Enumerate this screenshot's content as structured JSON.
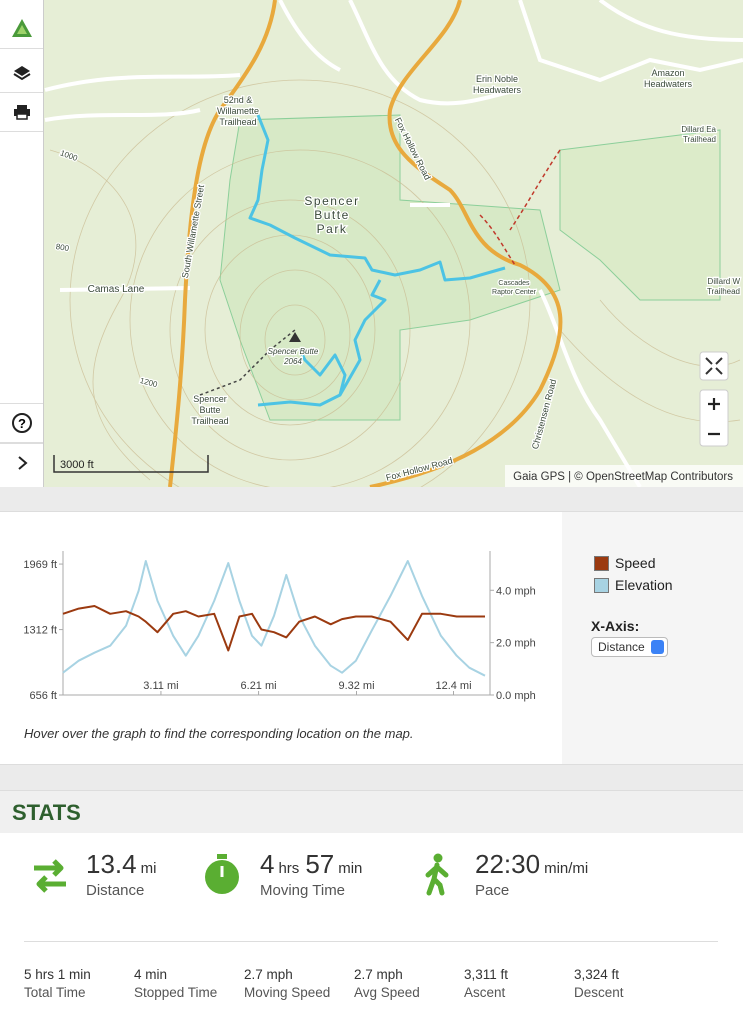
{
  "map": {
    "labels": [
      {
        "lines": [
          "52nd &",
          "Willamette",
          "Trailhead"
        ]
      },
      {
        "lines": [
          "Spencer",
          "Butte",
          "Park"
        ]
      },
      {
        "lines": [
          "Fox Hollow Road"
        ]
      },
      {
        "lines": [
          "South Willamette Street"
        ]
      },
      {
        "lines": [
          "Camas Lane"
        ]
      },
      {
        "lines": [
          "Spencer Butte",
          "2064"
        ]
      },
      {
        "lines": [
          "Spencer",
          "Butte",
          "Trailhead"
        ]
      },
      {
        "lines": [
          "Erin Noble",
          "Headwaters"
        ]
      },
      {
        "lines": [
          "Amazon",
          "Headwaters"
        ]
      },
      {
        "lines": [
          "Dillard Ea",
          "Trailhead"
        ]
      },
      {
        "lines": [
          "Cascades",
          "Raptor Center"
        ]
      },
      {
        "lines": [
          "Dillard W",
          "Trailhead"
        ]
      },
      {
        "lines": [
          "Christensen Road"
        ]
      },
      {
        "lines": [
          "Fox Hollow Road"
        ]
      },
      {
        "lines": [
          "1000"
        ]
      },
      {
        "lines": [
          "800"
        ]
      },
      {
        "lines": [
          "1200"
        ]
      }
    ],
    "scale": "3000 ft",
    "attribution": "Gaia GPS | © OpenStreetMap Contributors"
  },
  "chart_data": {
    "type": "line",
    "x": [
      0,
      0.5,
      1.0,
      1.5,
      2.0,
      2.4,
      2.63,
      3.0,
      3.5,
      3.9,
      4.3,
      4.8,
      5.25,
      5.6,
      6.0,
      6.3,
      6.7,
      7.09,
      7.5,
      8.0,
      8.5,
      8.86,
      9.3,
      9.8,
      10.4,
      10.95,
      11.4,
      12.0,
      12.5,
      12.9,
      13.4
    ],
    "series": [
      {
        "name": "Speed",
        "color": "#9b3a10",
        "axis": "y2",
        "values": [
          3.1,
          3.3,
          3.4,
          3.1,
          3.2,
          3.0,
          2.8,
          2.4,
          3.1,
          3.2,
          3.0,
          3.1,
          1.7,
          3.0,
          3.1,
          2.5,
          2.4,
          2.2,
          2.8,
          3.0,
          2.7,
          2.9,
          3.0,
          3.0,
          2.8,
          2.1,
          3.1,
          3.1,
          3.0,
          3.0,
          3.0
        ]
      },
      {
        "name": "Elevation",
        "color": "#a8d3e3",
        "values": [
          880,
          1000,
          1080,
          1150,
          1350,
          1700,
          2000,
          1600,
          1250,
          1050,
          1250,
          1600,
          1980,
          1600,
          1250,
          1150,
          1450,
          1860,
          1450,
          1150,
          950,
          880,
          1000,
          1300,
          1650,
          2000,
          1650,
          1250,
          1050,
          930,
          850
        ]
      }
    ],
    "xlim": [
      0,
      13.4
    ],
    "xticks": [
      {
        "value": 3.11,
        "label": "3.11 mi"
      },
      {
        "value": 6.21,
        "label": "6.21 mi"
      },
      {
        "value": 9.32,
        "label": "9.32 mi"
      },
      {
        "value": 12.4,
        "label": "12.4 mi"
      }
    ],
    "ylim": [
      656,
      2100
    ],
    "yticks": [
      {
        "value": 656,
        "label": "656 ft"
      },
      {
        "value": 1312,
        "label": "1312 ft"
      },
      {
        "value": 1969,
        "label": "1969 ft"
      }
    ],
    "y2lim": [
      0,
      5.5
    ],
    "y2ticks": [
      {
        "value": 0,
        "label": "0.0 mph"
      },
      {
        "value": 2,
        "label": "2.0 mph"
      },
      {
        "value": 4,
        "label": "4.0 mph"
      }
    ],
    "note": "Hover over the graph to find the corresponding location on the map.",
    "xaxis_label": "X-Axis:",
    "xaxis_option": "Distance"
  },
  "stats": {
    "title": "STATS",
    "primary": [
      {
        "parts": [
          "13.4",
          "mi"
        ],
        "label": "Distance"
      },
      {
        "parts": [
          "4",
          "hrs",
          "57",
          "min"
        ],
        "label": "Moving Time"
      },
      {
        "parts": [
          "22:30",
          "min/mi"
        ],
        "label": "Pace"
      }
    ],
    "secondary": [
      {
        "value": "5 hrs 1 min",
        "label": "Total Time"
      },
      {
        "value": "4 min",
        "label": "Stopped Time"
      },
      {
        "value": "2.7 mph",
        "label": "Moving Speed"
      },
      {
        "value": "2.7 mph",
        "label": "Avg Speed"
      },
      {
        "value": "3,311 ft",
        "label": "Ascent"
      },
      {
        "value": "3,324 ft",
        "label": "Descent"
      }
    ]
  }
}
